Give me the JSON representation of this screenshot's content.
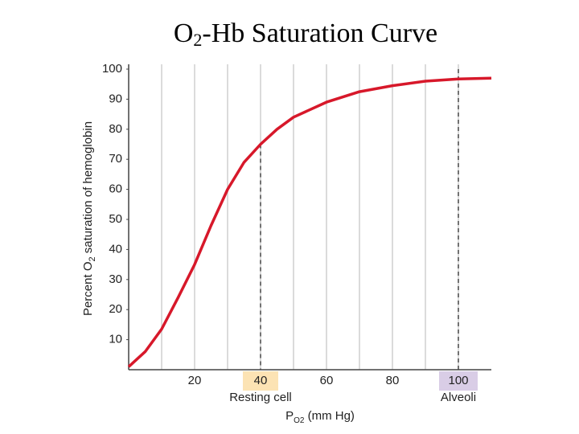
{
  "chart_data": {
    "type": "line",
    "title": {
      "base": "O",
      "sub": "2",
      "rest": "-Hb Saturation Curve"
    },
    "ylabel": {
      "base": "Percent O",
      "sub": "2",
      "rest": " saturation of hemoglobin"
    },
    "xlabel": {
      "base": "P",
      "sub": "O2",
      "rest": " (mm Hg)"
    },
    "x": [
      0,
      5,
      10,
      15,
      20,
      25,
      30,
      35,
      40,
      45,
      50,
      60,
      70,
      80,
      90,
      100,
      110
    ],
    "series": [
      {
        "color": "#d7182a",
        "values": [
          1,
          6,
          13.5,
          24,
          35,
          48,
          60,
          69,
          75,
          80,
          84,
          89,
          92.5,
          94.5,
          96,
          96.7,
          97
        ]
      }
    ],
    "xlim": [
      0,
      110
    ],
    "ylim": [
      0,
      100
    ],
    "xticks": [
      20,
      40,
      60,
      80,
      100
    ],
    "yticks": [
      10,
      20,
      30,
      40,
      50,
      60,
      70,
      80,
      90,
      100
    ],
    "xgrid": [
      10,
      20,
      30,
      40,
      50,
      60,
      70,
      80,
      90,
      100
    ],
    "grid": true,
    "markers": [
      {
        "x": 40,
        "y": 75,
        "label": "Resting cell",
        "color": "#fce3b4"
      },
      {
        "x": 100,
        "y": 100,
        "label": "Alveoli",
        "color": "#d9cde6"
      }
    ]
  }
}
